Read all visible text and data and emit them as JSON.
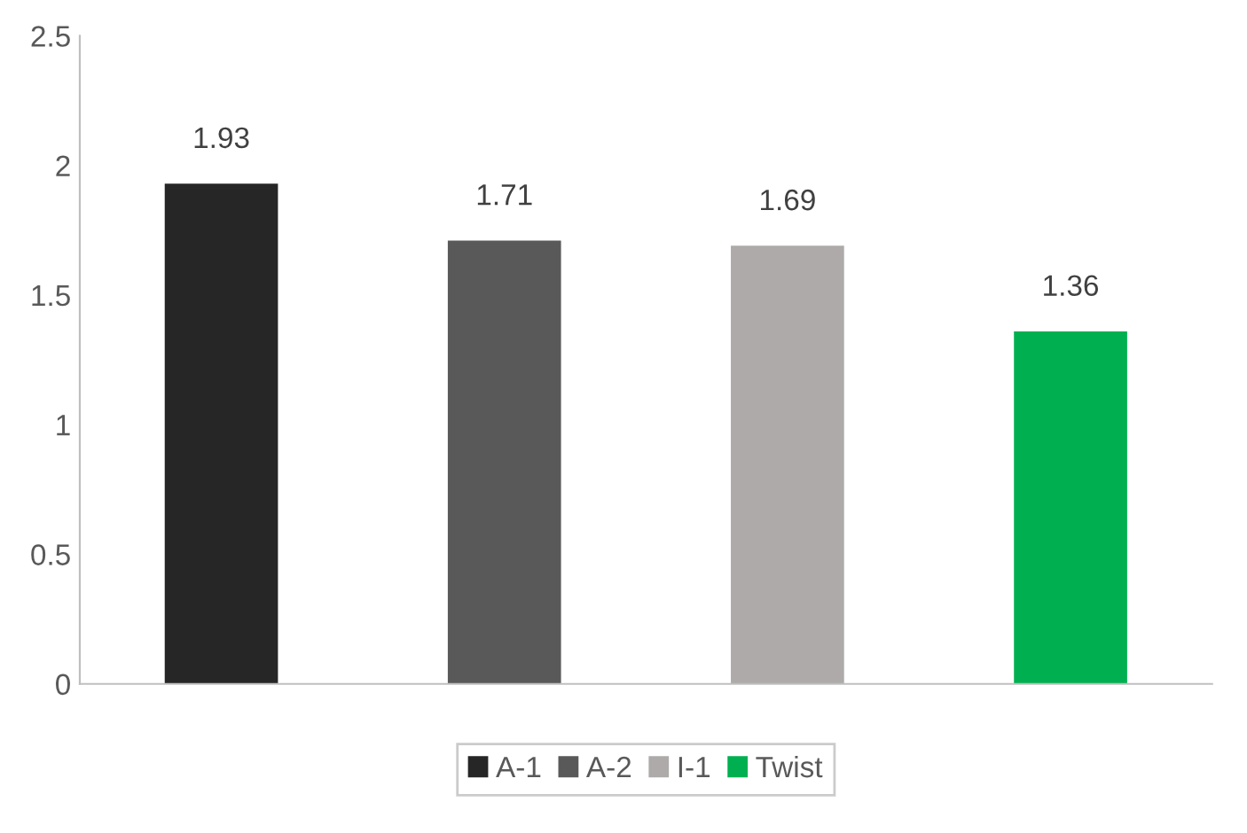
{
  "chart_data": {
    "type": "bar",
    "categories": [
      null,
      null,
      null,
      null
    ],
    "series": [
      {
        "name": "A-1",
        "color": "#262626",
        "values": [
          1.93,
          null,
          null,
          null
        ]
      },
      {
        "name": "A-2",
        "color": "#595959",
        "values": [
          null,
          1.71,
          null,
          null
        ]
      },
      {
        "name": "I-1",
        "color": "#aeaaaa",
        "values": [
          null,
          null,
          1.69,
          null
        ]
      },
      {
        "name": "Twist",
        "color": "#00b050",
        "values": [
          null,
          null,
          null,
          1.36
        ]
      }
    ],
    "ylim": [
      0,
      2.5
    ],
    "yticks": [
      0,
      0.5,
      1,
      1.5,
      2,
      2.5
    ],
    "grid": false,
    "legend": "bottom",
    "data_labels": true
  }
}
